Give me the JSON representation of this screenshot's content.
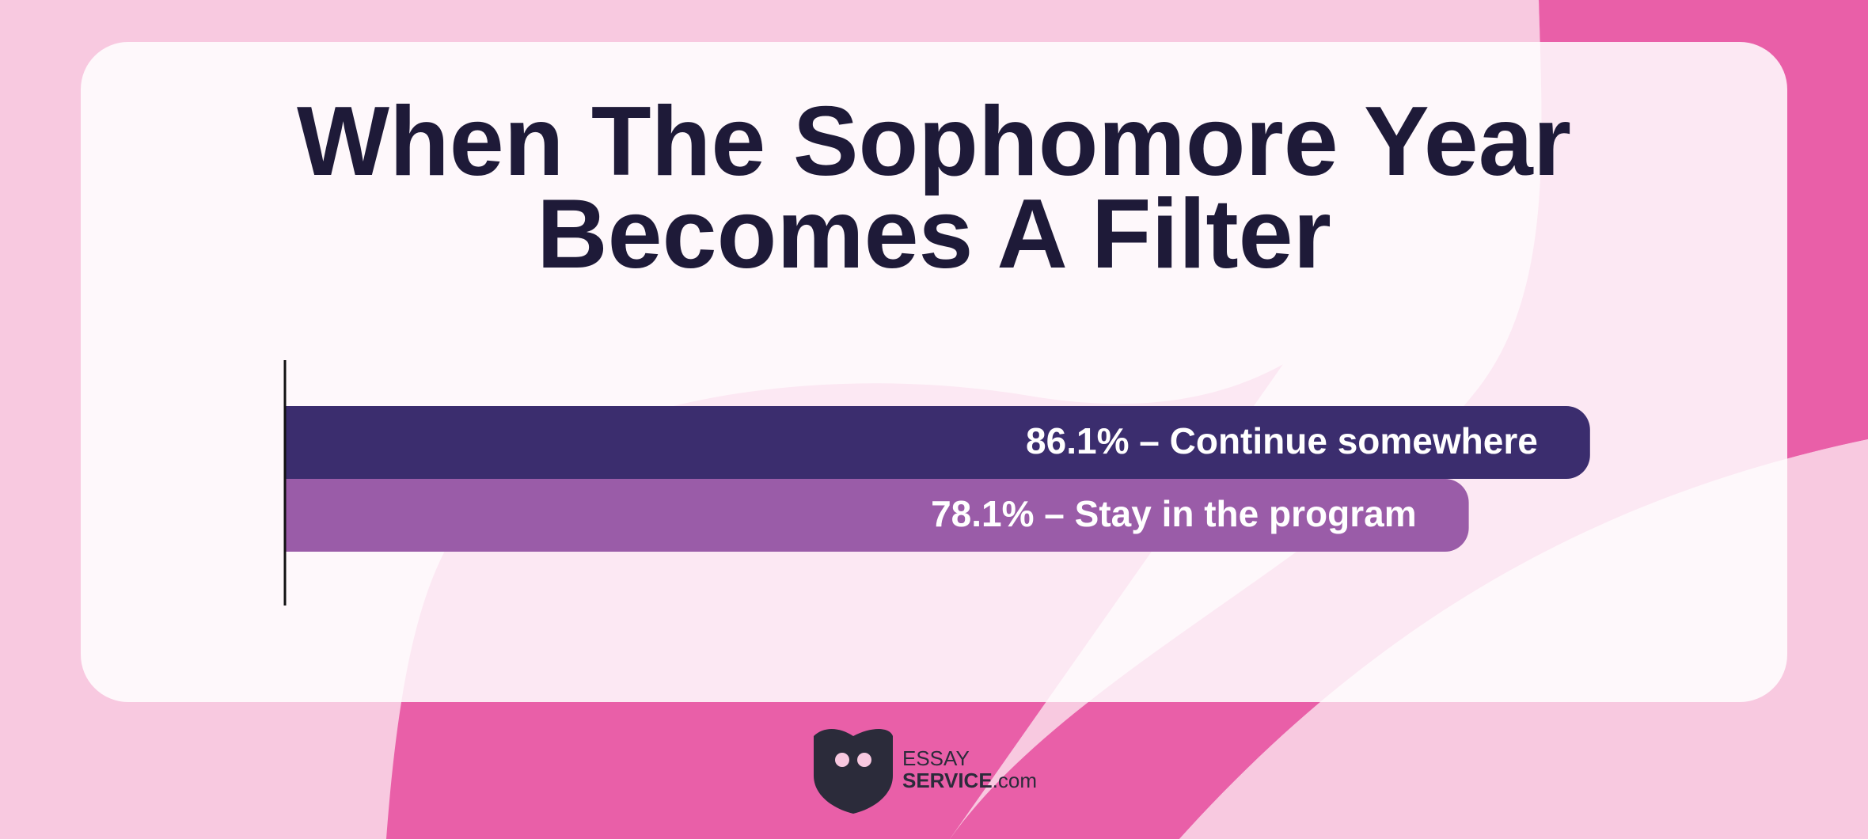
{
  "chart_data": {
    "type": "barh",
    "title": [
      "When The Sophomore Year",
      "Becomes A Filter"
    ],
    "values": [
      86.1,
      78.1
    ],
    "value_labels": [
      "86.1% – Continue somewhere",
      "78.1% – Stay in the program"
    ],
    "colors": [
      "#3b2d6e",
      "#9a5ca8"
    ],
    "xlim": [
      0,
      100
    ]
  },
  "logo": {
    "top": "ESSAY",
    "bottom": "SERVICE",
    "suffix": ".com"
  }
}
